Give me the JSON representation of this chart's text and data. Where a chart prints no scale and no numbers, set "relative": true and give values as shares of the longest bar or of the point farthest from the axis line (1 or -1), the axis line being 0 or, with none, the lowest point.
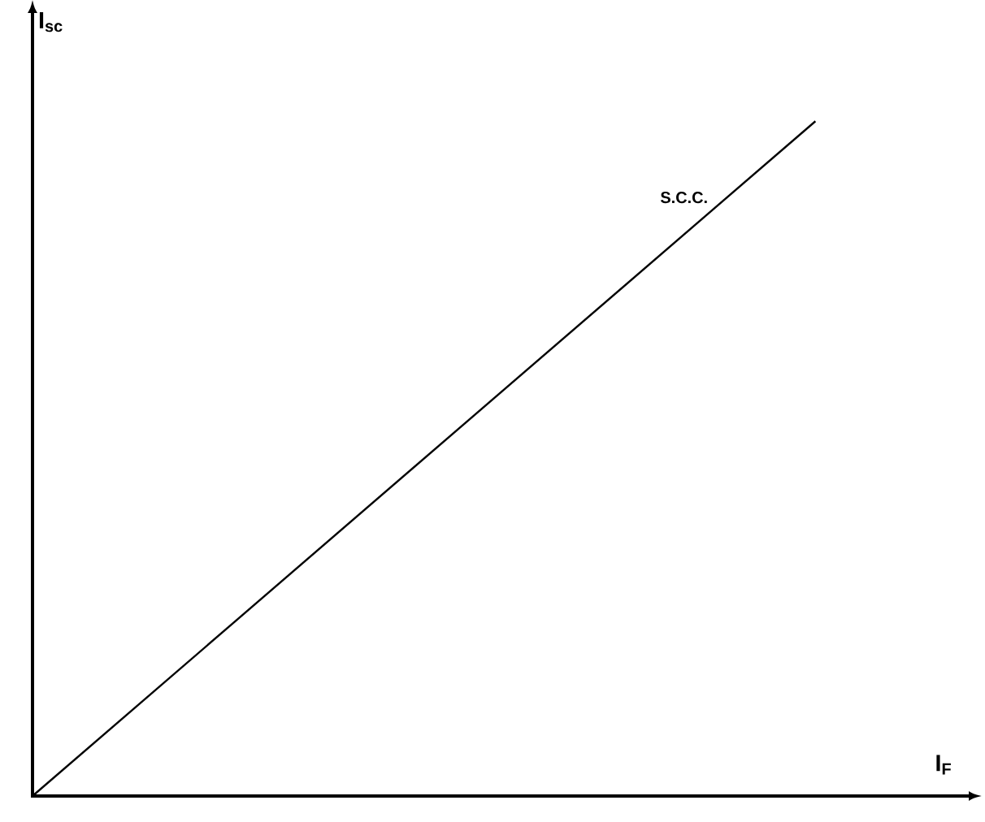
{
  "chart_data": {
    "type": "line",
    "relative": true,
    "xlabel": "I$_{F}$",
    "ylabel": "I$_{sc}$",
    "categories": [
      null,
      null
    ],
    "series": [
      {
        "color": "#000000",
        "values": [
          0,
          1
        ]
      }
    ],
    "annotations": [
      "S.C.C."
    ],
    "marker": "none",
    "line_style": "solid"
  }
}
